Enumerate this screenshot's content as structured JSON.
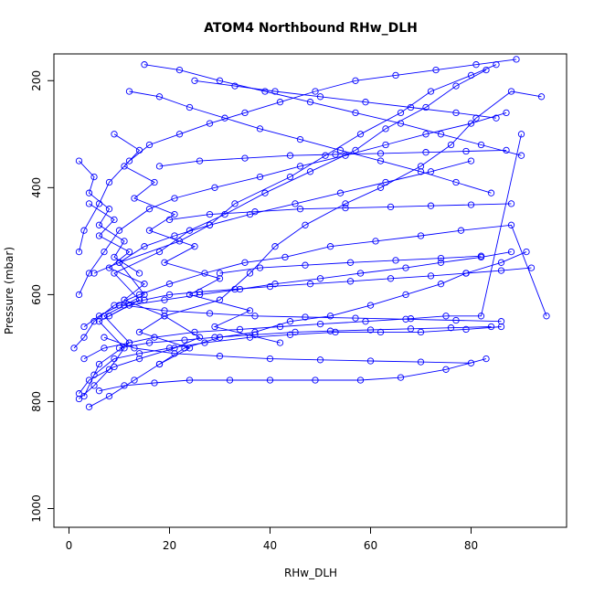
{
  "chart_data": {
    "type": "line",
    "title": "ATOM4 Northbound RHw_DLH",
    "xlabel": "RHw_DLH",
    "ylabel": "Pressure (mbar)",
    "xlim": [
      -3,
      99
    ],
    "ylim": [
      1035,
      150
    ],
    "y_reversed": true,
    "x_ticks": [
      "0",
      "20",
      "40",
      "60",
      "80"
    ],
    "y_ticks": [
      "200",
      "400",
      "600",
      "800",
      "1000"
    ],
    "grid": false,
    "legend": "none",
    "markers": "open-circle",
    "line_color": "#0000ff",
    "series": [
      {
        "x": [
          2,
          4,
          9,
          14,
          21,
          26,
          19,
          30,
          36,
          41,
          47,
          55,
          62,
          70,
          76,
          81,
          88,
          94
        ],
        "y": [
          785,
          760,
          735,
          720,
          700,
          680,
          640,
          610,
          560,
          510,
          470,
          430,
          400,
          360,
          320,
          270,
          220,
          230
        ]
      },
      {
        "x": [
          3,
          6,
          12,
          7,
          15,
          10,
          22,
          28,
          33,
          44,
          51,
          58,
          66,
          72,
          80,
          85
        ],
        "y": [
          790,
          730,
          690,
          640,
          600,
          540,
          500,
          470,
          430,
          380,
          340,
          300,
          260,
          220,
          190,
          170
        ]
      },
      {
        "x": [
          2,
          5,
          8,
          11,
          6,
          14,
          9,
          18,
          24,
          31,
          39,
          48,
          57,
          63,
          71,
          77,
          83
        ],
        "y": [
          795,
          770,
          740,
          700,
          650,
          610,
          560,
          520,
          480,
          450,
          410,
          370,
          330,
          290,
          250,
          210,
          180
        ]
      },
      {
        "x": [
          4,
          8,
          13,
          18,
          23,
          30,
          37,
          44,
          52,
          60,
          67,
          74,
          79,
          86,
          91
        ],
        "y": [
          810,
          790,
          760,
          730,
          700,
          680,
          670,
          650,
          640,
          620,
          600,
          580,
          560,
          540,
          520
        ]
      },
      {
        "x": [
          1,
          3,
          5,
          9,
          14,
          20,
          27,
          35,
          43,
          52,
          61,
          70,
          78,
          88,
          95
        ],
        "y": [
          700,
          680,
          650,
          620,
          600,
          580,
          560,
          540,
          530,
          510,
          500,
          490,
          480,
          470,
          640
        ]
      },
      {
        "x": [
          3,
          7,
          12,
          17,
          25,
          34,
          42,
          50,
          59,
          68,
          75,
          82,
          90
        ],
        "y": [
          720,
          700,
          690,
          680,
          670,
          665,
          660,
          655,
          650,
          645,
          640,
          640,
          300
        ]
      },
      {
        "x": [
          2,
          4,
          7,
          10,
          16,
          21,
          29,
          38,
          46,
          55,
          63,
          71,
          80,
          87
        ],
        "y": [
          600,
          560,
          520,
          480,
          440,
          420,
          400,
          380,
          360,
          340,
          320,
          300,
          280,
          260
        ]
      },
      {
        "x": [
          5,
          9,
          14,
          20,
          27,
          36,
          44,
          53,
          62,
          70,
          79,
          86
        ],
        "y": [
          750,
          720,
          710,
          700,
          690,
          680,
          675,
          670,
          670,
          670,
          665,
          660
        ]
      },
      {
        "x": [
          2,
          3,
          6,
          8,
          12,
          16,
          22,
          28,
          35,
          42,
          49,
          57,
          65,
          73,
          81,
          89
        ],
        "y": [
          520,
          480,
          430,
          390,
          350,
          320,
          300,
          280,
          260,
          240,
          220,
          200,
          190,
          180,
          170,
          160
        ]
      },
      {
        "x": [
          6,
          11,
          17,
          24,
          32,
          40,
          49,
          58,
          66,
          75,
          83
        ],
        "y": [
          780,
          770,
          765,
          760,
          760,
          760,
          760,
          760,
          755,
          740,
          720
        ]
      },
      {
        "x": [
          8,
          12,
          19,
          26,
          34,
          41,
          50,
          58,
          67,
          74,
          82,
          88
        ],
        "y": [
          640,
          620,
          610,
          600,
          590,
          580,
          570,
          560,
          550,
          540,
          530,
          520
        ]
      },
      {
        "x": [
          9,
          14,
          11,
          17,
          13,
          21,
          16,
          25,
          19,
          30,
          24,
          36,
          29,
          42
        ],
        "y": [
          300,
          330,
          360,
          390,
          420,
          450,
          480,
          510,
          540,
          570,
          600,
          630,
          660,
          690
        ]
      },
      {
        "x": [
          12,
          18,
          24,
          31,
          38,
          46,
          54,
          62,
          70,
          77,
          84
        ],
        "y": [
          220,
          230,
          250,
          270,
          290,
          310,
          330,
          350,
          370,
          390,
          410
        ]
      },
      {
        "x": [
          15,
          22,
          30,
          39,
          48,
          57,
          66,
          74,
          82,
          90
        ],
        "y": [
          170,
          180,
          200,
          220,
          240,
          260,
          280,
          300,
          320,
          340
        ]
      },
      {
        "x": [
          5,
          10,
          15,
          21,
          28,
          36,
          45,
          54,
          63,
          72,
          80
        ],
        "y": [
          560,
          540,
          510,
          490,
          470,
          450,
          430,
          410,
          390,
          370,
          350
        ]
      },
      {
        "x": [
          3,
          6,
          10,
          15,
          20,
          26,
          33,
          40,
          48,
          56,
          64,
          72,
          79,
          86,
          92
        ],
        "y": [
          660,
          640,
          620,
          610,
          600,
          595,
          590,
          585,
          580,
          575,
          570,
          565,
          560,
          555,
          550
        ]
      },
      {
        "x": [
          10,
          16,
          23,
          29,
          37,
          45,
          52,
          60,
          68,
          76,
          84
        ],
        "y": [
          700,
          690,
          685,
          680,
          675,
          670,
          668,
          666,
          664,
          662,
          660
        ]
      },
      {
        "x": [
          4,
          9,
          6,
          12,
          8,
          15,
          11,
          19,
          14,
          24,
          18
        ],
        "y": [
          430,
          460,
          490,
          520,
          550,
          580,
          610,
          640,
          670,
          700,
          730
        ]
      },
      {
        "x": [
          18,
          26,
          35,
          44,
          53,
          62,
          71,
          79,
          87
        ],
        "y": [
          360,
          350,
          345,
          340,
          338,
          336,
          334,
          332,
          330
        ]
      },
      {
        "x": [
          20,
          28,
          37,
          46,
          55,
          64,
          72,
          80,
          88
        ],
        "y": [
          460,
          450,
          445,
          440,
          438,
          436,
          434,
          432,
          430
        ]
      },
      {
        "x": [
          7,
          13,
          21,
          30,
          40,
          50,
          60,
          70,
          80
        ],
        "y": [
          680,
          700,
          710,
          715,
          720,
          722,
          724,
          726,
          728
        ]
      },
      {
        "x": [
          25,
          33,
          41,
          50,
          59,
          68,
          77,
          85
        ],
        "y": [
          200,
          210,
          220,
          230,
          240,
          250,
          260,
          270
        ]
      },
      {
        "x": [
          30,
          38,
          47,
          56,
          65,
          74,
          82
        ],
        "y": [
          560,
          550,
          545,
          540,
          536,
          532,
          528
        ]
      },
      {
        "x": [
          2,
          5,
          4,
          8,
          6,
          11,
          9,
          14
        ],
        "y": [
          350,
          380,
          410,
          440,
          470,
          500,
          530,
          560
        ]
      },
      {
        "x": [
          11,
          19,
          28,
          37,
          47,
          57,
          67,
          77,
          86
        ],
        "y": [
          620,
          630,
          635,
          640,
          642,
          644,
          646,
          648,
          650
        ]
      }
    ]
  }
}
